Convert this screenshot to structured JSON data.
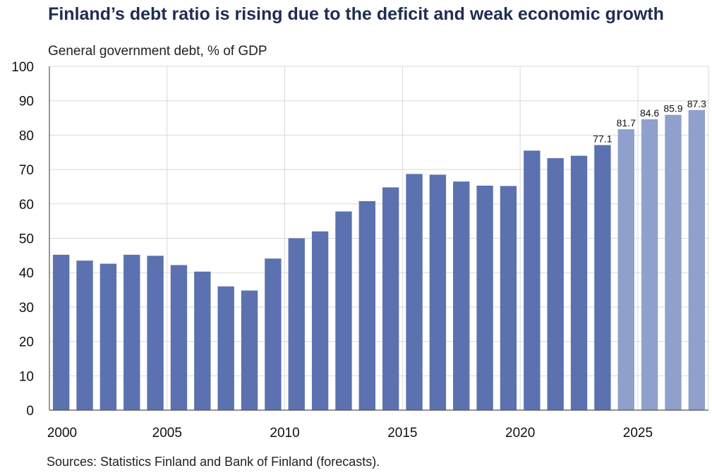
{
  "chart_data": {
    "type": "bar",
    "title": "Finland’s debt ratio is rising due to the deficit and weak economic growth",
    "ylabel": "General government debt, % of GDP",
    "xlabel": "",
    "source": "Sources: Statistics Finland and Bank of Finland (forecasts).",
    "ylim": [
      0,
      100
    ],
    "yticks": [
      0,
      10,
      20,
      30,
      40,
      50,
      60,
      70,
      80,
      90,
      100
    ],
    "xticks": [
      2000,
      2005,
      2010,
      2015,
      2020,
      2025
    ],
    "grid": true,
    "categories": [
      2000,
      2001,
      2002,
      2003,
      2004,
      2005,
      2006,
      2007,
      2008,
      2009,
      2010,
      2011,
      2012,
      2013,
      2014,
      2015,
      2016,
      2017,
      2018,
      2019,
      2020,
      2021,
      2022,
      2023,
      2024,
      2025,
      2026,
      2027
    ],
    "values": [
      45.2,
      43.5,
      42.6,
      45.2,
      44.9,
      42.2,
      40.3,
      36.0,
      34.8,
      44.1,
      50.0,
      52.0,
      57.8,
      60.8,
      64.8,
      68.7,
      68.5,
      66.5,
      65.3,
      65.2,
      75.5,
      73.3,
      74.0,
      77.1,
      81.7,
      84.6,
      85.9,
      87.3
    ],
    "labeled": [
      false,
      false,
      false,
      false,
      false,
      false,
      false,
      false,
      false,
      false,
      false,
      false,
      false,
      false,
      false,
      false,
      false,
      false,
      false,
      false,
      false,
      false,
      false,
      true,
      true,
      true,
      true,
      true
    ],
    "forecast": [
      false,
      false,
      false,
      false,
      false,
      false,
      false,
      false,
      false,
      false,
      false,
      false,
      false,
      false,
      false,
      false,
      false,
      false,
      false,
      false,
      false,
      false,
      false,
      false,
      true,
      true,
      true,
      true
    ],
    "colors": {
      "actual": "#5b71b0",
      "forecast": "#8fa0cc",
      "grid": "#d9d9d9",
      "axis": "#555555"
    }
  }
}
